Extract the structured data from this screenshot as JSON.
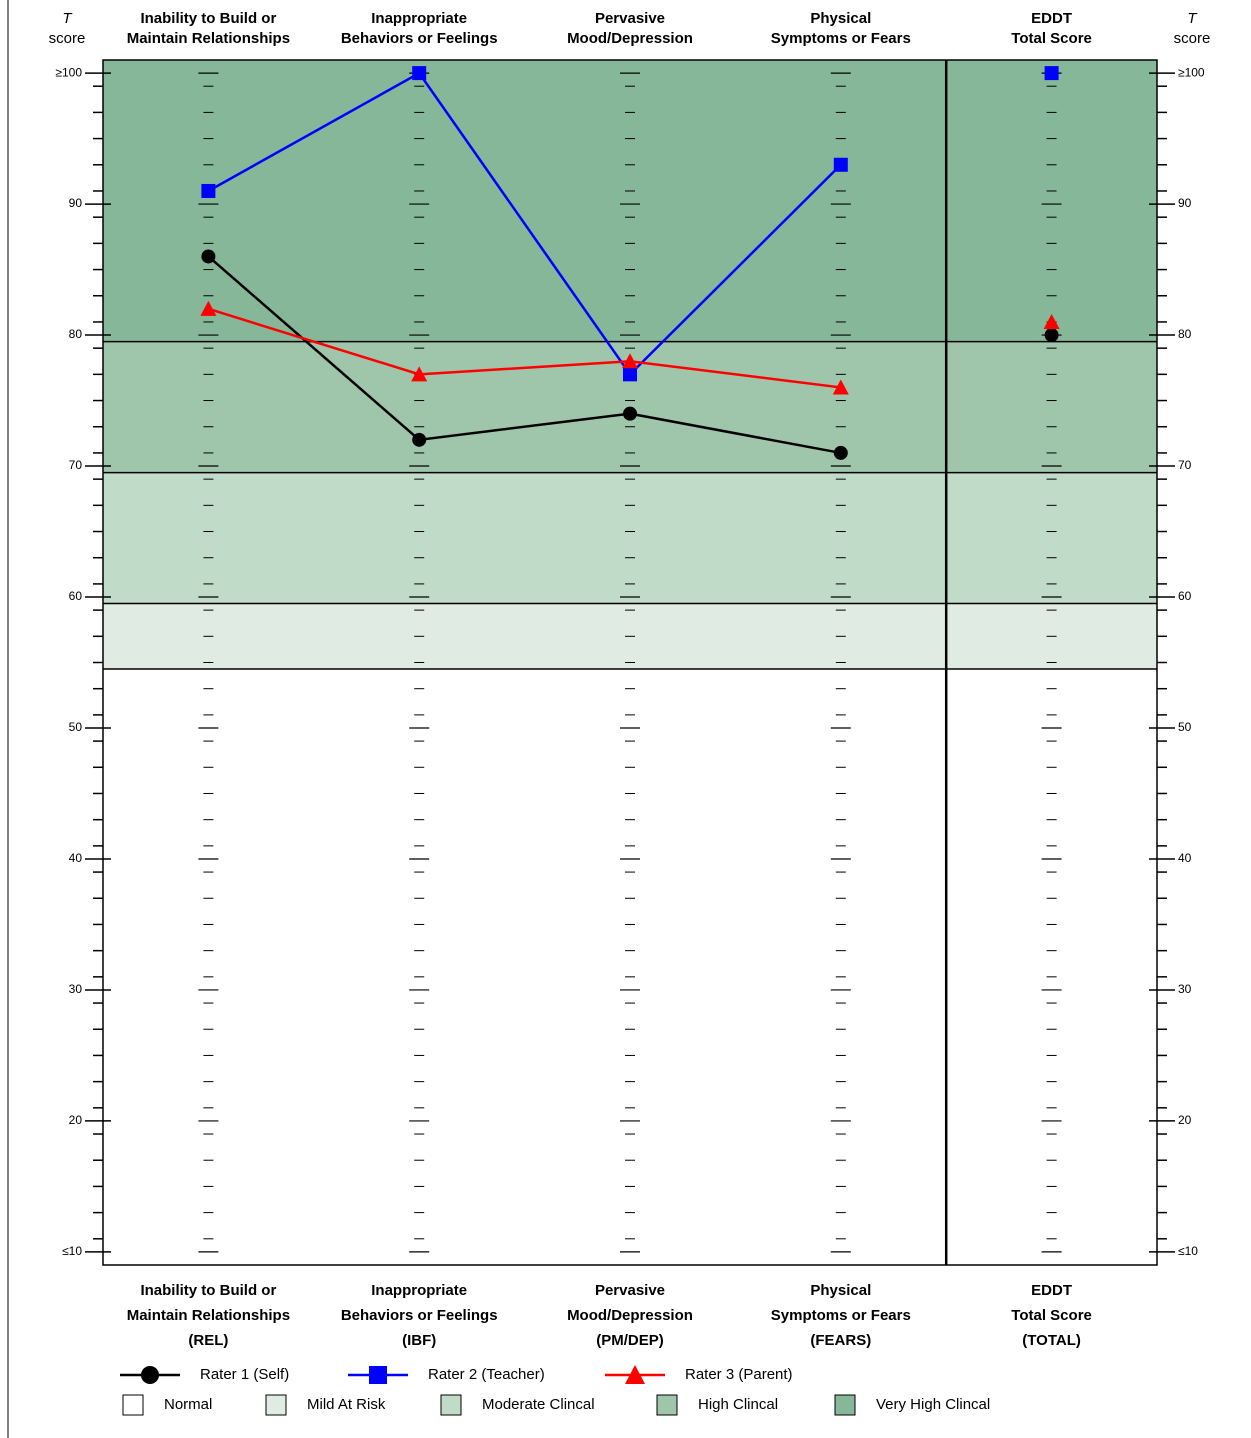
{
  "chart_data": {
    "type": "line",
    "ylabel_symbol": "T",
    "ylabel": "score",
    "categories": [
      "Inability to Build or\nMaintain Relationships",
      "Inappropriate\nBehaviors or Feelings",
      "Pervasive\nMood/Depression",
      "Physical\nSymptoms or Fears",
      "EDDT\nTotal Score"
    ],
    "category_abbreviations": [
      "(REL)",
      "(IBF)",
      "(PM/DEP)",
      "(FEARS)",
      "(TOTAL)"
    ],
    "separate_last_category": true,
    "series": [
      {
        "name": "Rater 1 (Self)",
        "color": "#000000",
        "marker": "circle",
        "values": [
          86,
          72,
          74,
          71,
          80
        ]
      },
      {
        "name": "Rater 2 (Teacher)",
        "color": "#0000ff",
        "marker": "square",
        "values": [
          91,
          100,
          77,
          93,
          100
        ]
      },
      {
        "name": "Rater 3 (Parent)",
        "color": "#ff0000",
        "marker": "triangle",
        "values": [
          82,
          77,
          78,
          76,
          81
        ]
      }
    ],
    "bands": [
      {
        "name": "Normal",
        "color": "#ffffff",
        "range": [
          9,
          54.5
        ]
      },
      {
        "name": "Mild At Risk",
        "color": "#e0ece3",
        "range": [
          54.5,
          59.5
        ]
      },
      {
        "name": "Moderate Clincal",
        "color": "#c1dbc9",
        "range": [
          59.5,
          69.5
        ]
      },
      {
        "name": "High Clincal",
        "color": "#9fc5ab",
        "range": [
          69.5,
          79.5
        ]
      },
      {
        "name": "Very High Clincal",
        "color": "#86b799",
        "range": [
          79.5,
          101
        ]
      }
    ],
    "ylim": [
      9,
      101
    ],
    "yticks": [
      {
        "value": 100,
        "label": "≥100"
      },
      90,
      80,
      70,
      60,
      50,
      40,
      30,
      20,
      {
        "value": 10,
        "label": "≤10"
      }
    ],
    "minor_tick_interval": 2
  }
}
